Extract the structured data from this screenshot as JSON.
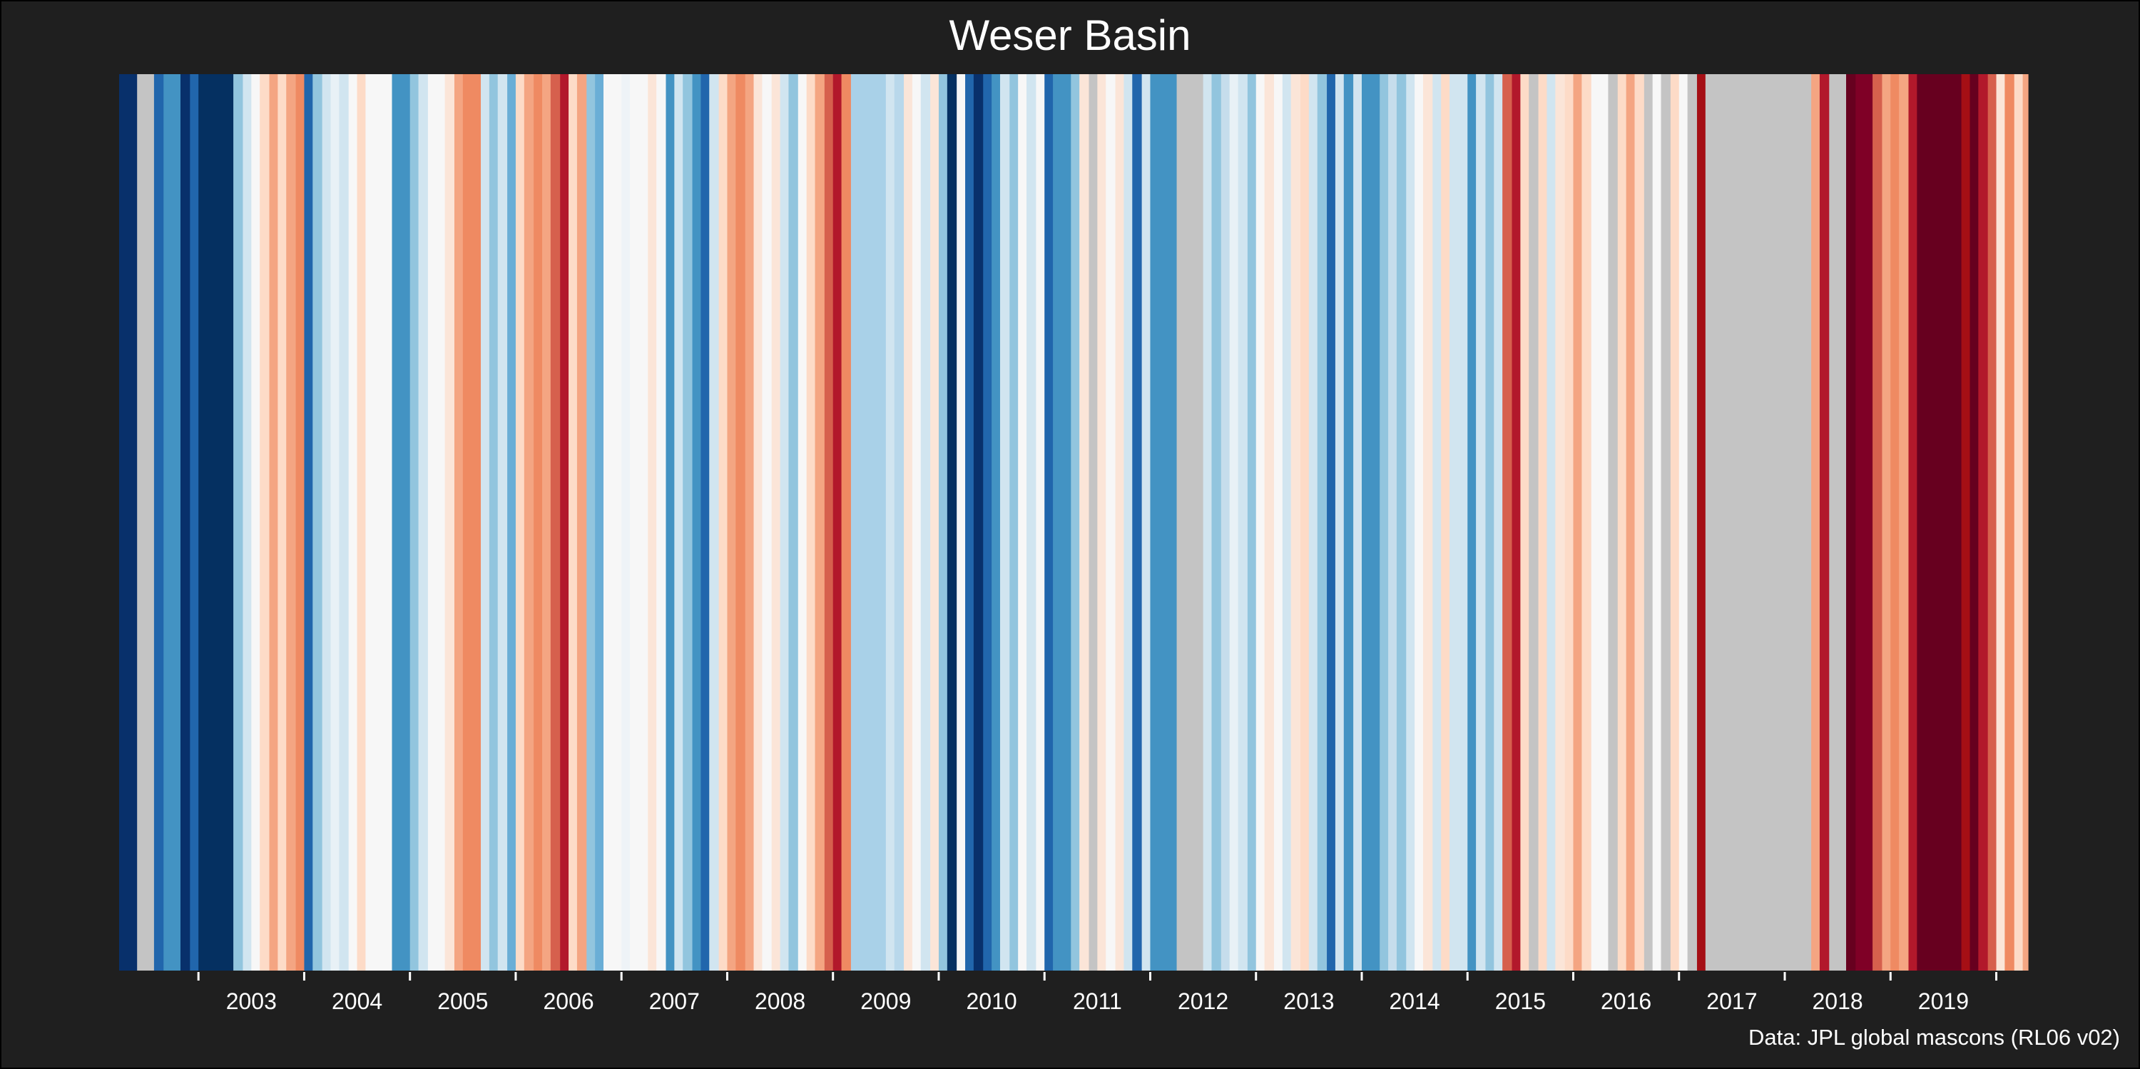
{
  "title": "Weser Basin",
  "caption": "Data: JPL global mascons (RL06 v02)",
  "chart_data": {
    "type": "heatmap",
    "title": "Weser Basin",
    "xlabel": "",
    "ylabel": "",
    "x_ticks": [
      "2003",
      "2004",
      "2005",
      "2006",
      "2007",
      "2008",
      "2009",
      "2010",
      "2011",
      "2012",
      "2013",
      "2014",
      "2015",
      "2016",
      "2017",
      "2018",
      "2019"
    ],
    "xlim": [
      2002.25,
      2020.3
    ],
    "grid": false,
    "legend": "none",
    "missing_color": "#c4c4c4",
    "stripes": [
      {
        "start": 2002.25,
        "end": 2002.42,
        "color": "#08306b"
      },
      {
        "start": 2002.42,
        "end": 2002.58,
        "color": "#c4c4c4"
      },
      {
        "start": 2002.58,
        "end": 2002.67,
        "color": "#2166ac"
      },
      {
        "start": 2002.67,
        "end": 2002.83,
        "color": "#4393c3"
      },
      {
        "start": 2002.83,
        "end": 2002.92,
        "color": "#08306b"
      },
      {
        "start": 2002.92,
        "end": 2003.0,
        "color": "#2166ac"
      },
      {
        "start": 2003.0,
        "end": 2003.33,
        "color": "#053061"
      },
      {
        "start": 2003.33,
        "end": 2003.42,
        "color": "#92c5de"
      },
      {
        "start": 2003.42,
        "end": 2003.5,
        "color": "#d1e5f0"
      },
      {
        "start": 2003.5,
        "end": 2003.58,
        "color": "#f7f7f7"
      },
      {
        "start": 2003.58,
        "end": 2003.67,
        "color": "#fddbc7"
      },
      {
        "start": 2003.67,
        "end": 2003.75,
        "color": "#f4a582"
      },
      {
        "start": 2003.75,
        "end": 2003.83,
        "color": "#fddbc7"
      },
      {
        "start": 2003.83,
        "end": 2003.92,
        "color": "#f4a582"
      },
      {
        "start": 2003.92,
        "end": 2004.0,
        "color": "#ef8a62"
      },
      {
        "start": 2004.0,
        "end": 2004.08,
        "color": "#2166ac"
      },
      {
        "start": 2004.08,
        "end": 2004.17,
        "color": "#92c5de"
      },
      {
        "start": 2004.17,
        "end": 2004.25,
        "color": "#d1e5f0"
      },
      {
        "start": 2004.25,
        "end": 2004.33,
        "color": "#e8f1f6"
      },
      {
        "start": 2004.33,
        "end": 2004.42,
        "color": "#d1e5f0"
      },
      {
        "start": 2004.42,
        "end": 2004.5,
        "color": "#f7f7f7"
      },
      {
        "start": 2004.5,
        "end": 2004.58,
        "color": "#fddbc7"
      },
      {
        "start": 2004.58,
        "end": 2004.83,
        "color": "#f7f7f7"
      },
      {
        "start": 2004.83,
        "end": 2005.0,
        "color": "#4393c3"
      },
      {
        "start": 2005.0,
        "end": 2005.08,
        "color": "#92c5de"
      },
      {
        "start": 2005.08,
        "end": 2005.17,
        "color": "#d1e5f0"
      },
      {
        "start": 2005.17,
        "end": 2005.33,
        "color": "#f7f7f7"
      },
      {
        "start": 2005.33,
        "end": 2005.42,
        "color": "#fbe5d8"
      },
      {
        "start": 2005.42,
        "end": 2005.5,
        "color": "#f4a582"
      },
      {
        "start": 2005.5,
        "end": 2005.67,
        "color": "#ef8a62"
      },
      {
        "start": 2005.67,
        "end": 2005.75,
        "color": "#d1e5f0"
      },
      {
        "start": 2005.75,
        "end": 2005.83,
        "color": "#92c5de"
      },
      {
        "start": 2005.83,
        "end": 2005.92,
        "color": "#d1e5f0"
      },
      {
        "start": 2005.92,
        "end": 2006.0,
        "color": "#6aaed6"
      },
      {
        "start": 2006.0,
        "end": 2006.08,
        "color": "#fddbc7"
      },
      {
        "start": 2006.08,
        "end": 2006.17,
        "color": "#f4a582"
      },
      {
        "start": 2006.17,
        "end": 2006.25,
        "color": "#ef8a62"
      },
      {
        "start": 2006.25,
        "end": 2006.33,
        "color": "#f4a582"
      },
      {
        "start": 2006.33,
        "end": 2006.42,
        "color": "#d6604d"
      },
      {
        "start": 2006.42,
        "end": 2006.5,
        "color": "#b2182b"
      },
      {
        "start": 2006.5,
        "end": 2006.58,
        "color": "#fddbc7"
      },
      {
        "start": 2006.58,
        "end": 2006.67,
        "color": "#f4a582"
      },
      {
        "start": 2006.67,
        "end": 2006.75,
        "color": "#92c5de"
      },
      {
        "start": 2006.75,
        "end": 2006.83,
        "color": "#6aaed6"
      },
      {
        "start": 2006.83,
        "end": 2007.0,
        "color": "#f7f7f7"
      },
      {
        "start": 2007.0,
        "end": 2007.08,
        "color": "#eef3f7"
      },
      {
        "start": 2007.08,
        "end": 2007.25,
        "color": "#f7f7f7"
      },
      {
        "start": 2007.25,
        "end": 2007.33,
        "color": "#fbe5d8"
      },
      {
        "start": 2007.33,
        "end": 2007.42,
        "color": "#f7f7f7"
      },
      {
        "start": 2007.42,
        "end": 2007.5,
        "color": "#4393c3"
      },
      {
        "start": 2007.5,
        "end": 2007.58,
        "color": "#d1e5f0"
      },
      {
        "start": 2007.58,
        "end": 2007.67,
        "color": "#92c5de"
      },
      {
        "start": 2007.67,
        "end": 2007.75,
        "color": "#4393c3"
      },
      {
        "start": 2007.75,
        "end": 2007.83,
        "color": "#2166ac"
      },
      {
        "start": 2007.83,
        "end": 2007.92,
        "color": "#d1e5f0"
      },
      {
        "start": 2007.92,
        "end": 2008.0,
        "color": "#fddbc7"
      },
      {
        "start": 2008.0,
        "end": 2008.08,
        "color": "#f4a582"
      },
      {
        "start": 2008.08,
        "end": 2008.17,
        "color": "#ef8a62"
      },
      {
        "start": 2008.17,
        "end": 2008.25,
        "color": "#f4a582"
      },
      {
        "start": 2008.25,
        "end": 2008.33,
        "color": "#fbe5d8"
      },
      {
        "start": 2008.33,
        "end": 2008.42,
        "color": "#f7f7f7"
      },
      {
        "start": 2008.42,
        "end": 2008.5,
        "color": "#fbe5d8"
      },
      {
        "start": 2008.5,
        "end": 2008.58,
        "color": "#d1e5f0"
      },
      {
        "start": 2008.58,
        "end": 2008.67,
        "color": "#92c5de"
      },
      {
        "start": 2008.67,
        "end": 2008.75,
        "color": "#f7f7f7"
      },
      {
        "start": 2008.75,
        "end": 2008.83,
        "color": "#fddbc7"
      },
      {
        "start": 2008.83,
        "end": 2008.92,
        "color": "#f4a582"
      },
      {
        "start": 2008.92,
        "end": 2009.0,
        "color": "#d6604d"
      },
      {
        "start": 2009.0,
        "end": 2009.08,
        "color": "#b2182b"
      },
      {
        "start": 2009.08,
        "end": 2009.17,
        "color": "#ef8a62"
      },
      {
        "start": 2009.17,
        "end": 2009.5,
        "color": "#a9d1e8"
      },
      {
        "start": 2009.5,
        "end": 2009.58,
        "color": "#d1e5f0"
      },
      {
        "start": 2009.58,
        "end": 2009.67,
        "color": "#b9d8eb"
      },
      {
        "start": 2009.67,
        "end": 2009.75,
        "color": "#fbe5d8"
      },
      {
        "start": 2009.75,
        "end": 2009.83,
        "color": "#f7f7f7"
      },
      {
        "start": 2009.83,
        "end": 2009.92,
        "color": "#d1e5f0"
      },
      {
        "start": 2009.92,
        "end": 2010.0,
        "color": "#fbe5d8"
      },
      {
        "start": 2010.0,
        "end": 2010.08,
        "color": "#92c5de"
      },
      {
        "start": 2010.08,
        "end": 2010.17,
        "color": "#053061"
      },
      {
        "start": 2010.17,
        "end": 2010.25,
        "color": "#f7f7f7"
      },
      {
        "start": 2010.25,
        "end": 2010.33,
        "color": "#2166ac"
      },
      {
        "start": 2010.33,
        "end": 2010.42,
        "color": "#08306b"
      },
      {
        "start": 2010.42,
        "end": 2010.5,
        "color": "#2166ac"
      },
      {
        "start": 2010.5,
        "end": 2010.58,
        "color": "#4393c3"
      },
      {
        "start": 2010.58,
        "end": 2010.67,
        "color": "#d1e5f0"
      },
      {
        "start": 2010.67,
        "end": 2010.75,
        "color": "#92c5de"
      },
      {
        "start": 2010.75,
        "end": 2010.83,
        "color": "#f7f7f7"
      },
      {
        "start": 2010.83,
        "end": 2010.92,
        "color": "#d1e5f0"
      },
      {
        "start": 2010.92,
        "end": 2011.0,
        "color": "#f7f7f7"
      },
      {
        "start": 2011.0,
        "end": 2011.08,
        "color": "#2166ac"
      },
      {
        "start": 2011.08,
        "end": 2011.25,
        "color": "#4393c3"
      },
      {
        "start": 2011.25,
        "end": 2011.33,
        "color": "#92c5de"
      },
      {
        "start": 2011.33,
        "end": 2011.42,
        "color": "#fbe5d8"
      },
      {
        "start": 2011.42,
        "end": 2011.5,
        "color": "#c4c4c4"
      },
      {
        "start": 2011.5,
        "end": 2011.58,
        "color": "#fbe5d8"
      },
      {
        "start": 2011.58,
        "end": 2011.67,
        "color": "#f7f7f7"
      },
      {
        "start": 2011.67,
        "end": 2011.75,
        "color": "#fbe5d8"
      },
      {
        "start": 2011.75,
        "end": 2011.83,
        "color": "#d1e5f0"
      },
      {
        "start": 2011.83,
        "end": 2011.92,
        "color": "#2166ac"
      },
      {
        "start": 2011.92,
        "end": 2012.0,
        "color": "#d1e5f0"
      },
      {
        "start": 2012.0,
        "end": 2012.25,
        "color": "#4393c3"
      },
      {
        "start": 2012.25,
        "end": 2012.5,
        "color": "#c4c4c4"
      },
      {
        "start": 2012.5,
        "end": 2012.58,
        "color": "#d1e5f0"
      },
      {
        "start": 2012.58,
        "end": 2012.67,
        "color": "#92c5de"
      },
      {
        "start": 2012.67,
        "end": 2012.75,
        "color": "#c6ddec"
      },
      {
        "start": 2012.75,
        "end": 2012.83,
        "color": "#e8f1f6"
      },
      {
        "start": 2012.83,
        "end": 2012.92,
        "color": "#d1e5f0"
      },
      {
        "start": 2012.92,
        "end": 2013.0,
        "color": "#92c5de"
      },
      {
        "start": 2013.0,
        "end": 2013.08,
        "color": "#f7f7f7"
      },
      {
        "start": 2013.08,
        "end": 2013.17,
        "color": "#fbe5d8"
      },
      {
        "start": 2013.17,
        "end": 2013.25,
        "color": "#f7f7f7"
      },
      {
        "start": 2013.25,
        "end": 2013.33,
        "color": "#d1e5f0"
      },
      {
        "start": 2013.33,
        "end": 2013.42,
        "color": "#fbe5d8"
      },
      {
        "start": 2013.42,
        "end": 2013.5,
        "color": "#fddbc7"
      },
      {
        "start": 2013.5,
        "end": 2013.58,
        "color": "#d1e5f0"
      },
      {
        "start": 2013.58,
        "end": 2013.67,
        "color": "#92c5de"
      },
      {
        "start": 2013.67,
        "end": 2013.75,
        "color": "#2166ac"
      },
      {
        "start": 2013.75,
        "end": 2013.83,
        "color": "#d1e5f0"
      },
      {
        "start": 2013.83,
        "end": 2013.92,
        "color": "#4393c3"
      },
      {
        "start": 2013.92,
        "end": 2014.0,
        "color": "#d1e5f0"
      },
      {
        "start": 2014.0,
        "end": 2014.17,
        "color": "#4393c3"
      },
      {
        "start": 2014.17,
        "end": 2014.25,
        "color": "#92c5de"
      },
      {
        "start": 2014.25,
        "end": 2014.33,
        "color": "#c6ddec"
      },
      {
        "start": 2014.33,
        "end": 2014.42,
        "color": "#92c5de"
      },
      {
        "start": 2014.42,
        "end": 2014.5,
        "color": "#d1e5f0"
      },
      {
        "start": 2014.5,
        "end": 2014.58,
        "color": "#f7f7f7"
      },
      {
        "start": 2014.58,
        "end": 2014.67,
        "color": "#fbe5d8"
      },
      {
        "start": 2014.67,
        "end": 2014.75,
        "color": "#d1e5f0"
      },
      {
        "start": 2014.75,
        "end": 2014.83,
        "color": "#fddbc7"
      },
      {
        "start": 2014.83,
        "end": 2015.0,
        "color": "#d1e5f0"
      },
      {
        "start": 2015.0,
        "end": 2015.08,
        "color": "#4393c3"
      },
      {
        "start": 2015.08,
        "end": 2015.17,
        "color": "#d1e5f0"
      },
      {
        "start": 2015.17,
        "end": 2015.25,
        "color": "#92c5de"
      },
      {
        "start": 2015.25,
        "end": 2015.33,
        "color": "#d1e5f0"
      },
      {
        "start": 2015.33,
        "end": 2015.42,
        "color": "#d6604d"
      },
      {
        "start": 2015.42,
        "end": 2015.5,
        "color": "#b2182b"
      },
      {
        "start": 2015.5,
        "end": 2015.58,
        "color": "#fddbc7"
      },
      {
        "start": 2015.58,
        "end": 2015.67,
        "color": "#c4c4c4"
      },
      {
        "start": 2015.67,
        "end": 2015.75,
        "color": "#fddbc7"
      },
      {
        "start": 2015.75,
        "end": 2015.83,
        "color": "#d1e5f0"
      },
      {
        "start": 2015.83,
        "end": 2015.92,
        "color": "#fbe5d8"
      },
      {
        "start": 2015.92,
        "end": 2016.0,
        "color": "#fddbc7"
      },
      {
        "start": 2016.0,
        "end": 2016.08,
        "color": "#f4a582"
      },
      {
        "start": 2016.08,
        "end": 2016.17,
        "color": "#fddbc7"
      },
      {
        "start": 2016.17,
        "end": 2016.33,
        "color": "#f7f7f7"
      },
      {
        "start": 2016.33,
        "end": 2016.42,
        "color": "#c4c4c4"
      },
      {
        "start": 2016.42,
        "end": 2016.5,
        "color": "#fddbc7"
      },
      {
        "start": 2016.5,
        "end": 2016.58,
        "color": "#f4a582"
      },
      {
        "start": 2016.58,
        "end": 2016.67,
        "color": "#fddbc7"
      },
      {
        "start": 2016.67,
        "end": 2016.75,
        "color": "#c4c4c4"
      },
      {
        "start": 2016.75,
        "end": 2016.83,
        "color": "#f7f7f7"
      },
      {
        "start": 2016.83,
        "end": 2016.92,
        "color": "#c4c4c4"
      },
      {
        "start": 2016.92,
        "end": 2017.0,
        "color": "#fddbc7"
      },
      {
        "start": 2017.0,
        "end": 2017.08,
        "color": "#f7f7f7"
      },
      {
        "start": 2017.08,
        "end": 2017.17,
        "color": "#c4c4c4"
      },
      {
        "start": 2017.17,
        "end": 2017.25,
        "color": "#a50f15"
      },
      {
        "start": 2017.25,
        "end": 2018.25,
        "color": "#c4c4c4"
      },
      {
        "start": 2018.25,
        "end": 2018.33,
        "color": "#f4a582"
      },
      {
        "start": 2018.33,
        "end": 2018.42,
        "color": "#b2182b"
      },
      {
        "start": 2018.42,
        "end": 2018.58,
        "color": "#c4c4c4"
      },
      {
        "start": 2018.58,
        "end": 2018.67,
        "color": "#67001f"
      },
      {
        "start": 2018.67,
        "end": 2018.83,
        "color": "#7f0026"
      },
      {
        "start": 2018.83,
        "end": 2018.92,
        "color": "#d6604d"
      },
      {
        "start": 2018.92,
        "end": 2019.0,
        "color": "#f4a582"
      },
      {
        "start": 2019.0,
        "end": 2019.08,
        "color": "#ef8a62"
      },
      {
        "start": 2019.08,
        "end": 2019.17,
        "color": "#f4a582"
      },
      {
        "start": 2019.17,
        "end": 2019.25,
        "color": "#b2182b"
      },
      {
        "start": 2019.25,
        "end": 2019.67,
        "color": "#67001f"
      },
      {
        "start": 2019.67,
        "end": 2019.75,
        "color": "#a50f15"
      },
      {
        "start": 2019.75,
        "end": 2019.83,
        "color": "#67001f"
      },
      {
        "start": 2019.83,
        "end": 2019.92,
        "color": "#b2182b"
      },
      {
        "start": 2019.92,
        "end": 2020.0,
        "color": "#d6604d"
      },
      {
        "start": 2020.0,
        "end": 2020.08,
        "color": "#fbe5d8"
      },
      {
        "start": 2020.08,
        "end": 2020.17,
        "color": "#ef8a62"
      },
      {
        "start": 2020.17,
        "end": 2020.25,
        "color": "#fddbc7"
      },
      {
        "start": 2020.25,
        "end": 2020.3,
        "color": "#f4a582"
      }
    ]
  }
}
